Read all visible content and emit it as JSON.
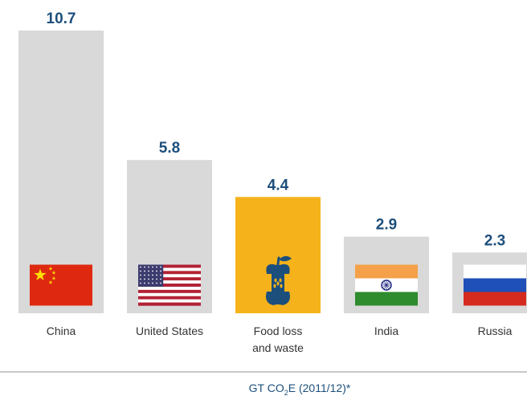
{
  "chart_data": {
    "type": "bar",
    "categories": [
      "China",
      "United States",
      "Food loss and waste",
      "India",
      "Russia"
    ],
    "category_lines": [
      [
        "China"
      ],
      [
        "United States"
      ],
      [
        "Food loss",
        "and waste"
      ],
      [
        "India"
      ],
      [
        "Russia"
      ]
    ],
    "values": [
      10.7,
      5.8,
      4.4,
      2.9,
      2.3
    ],
    "value_labels": [
      "10.7",
      "5.8",
      "4.4",
      "2.9",
      "2.3"
    ],
    "bar_colors": [
      "#d9d9d9",
      "#d9d9d9",
      "#f5b21a",
      "#d9d9d9",
      "#d9d9d9"
    ],
    "icons": [
      "china-flag-icon",
      "usa-flag-icon",
      "eaten-apple-icon",
      "india-flag-icon",
      "russia-flag-icon"
    ],
    "xlabel_parts": {
      "pre": "GT CO",
      "sub": "2",
      "post": "E (2011/12)*"
    },
    "ylim": [
      0,
      10.7
    ],
    "grid": false,
    "legend": "none"
  },
  "colors": {
    "value_text": "#1d4f7c",
    "axis_line": "#b5b5b5",
    "highlight": "#f5b21a",
    "bar": "#d9d9d9"
  }
}
